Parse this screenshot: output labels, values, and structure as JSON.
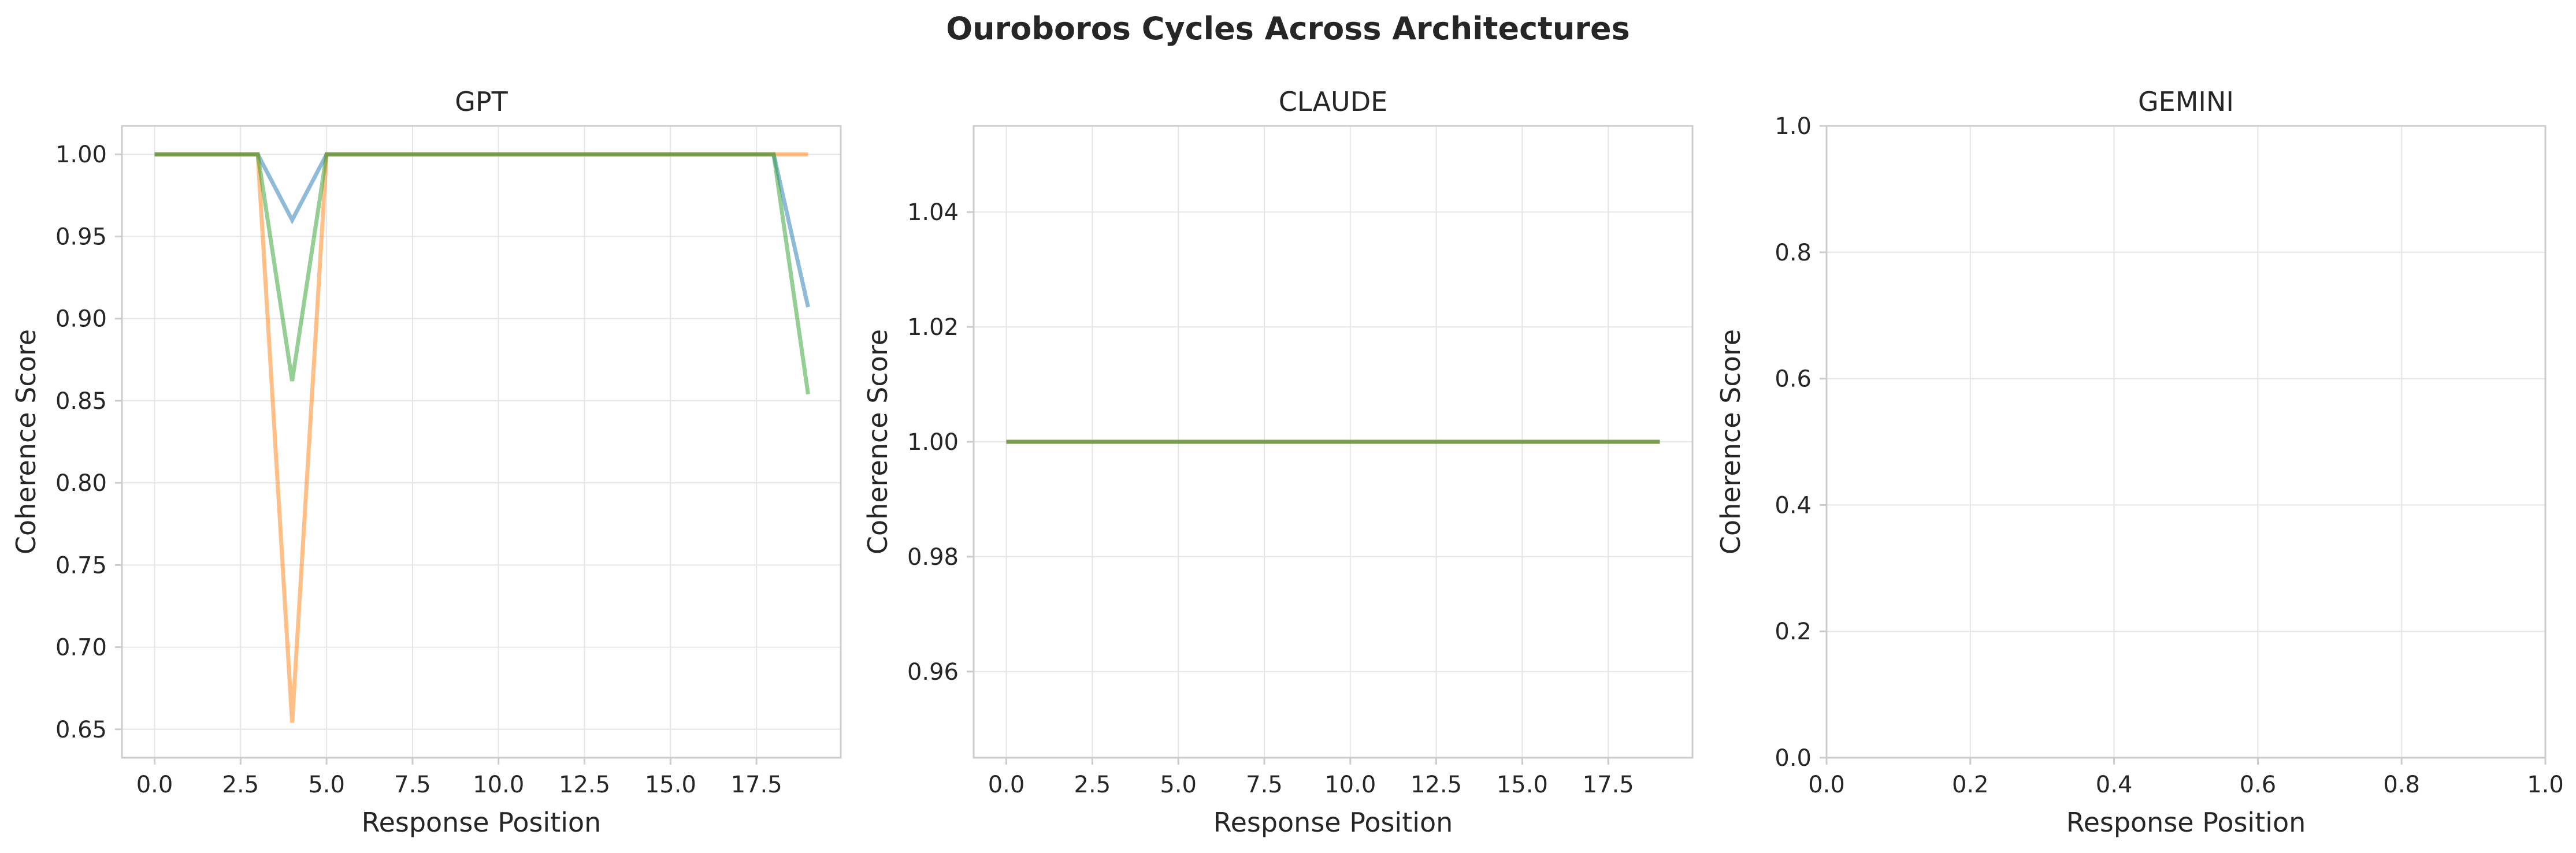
{
  "figure": {
    "title": "Ouroboros Cycles Across Architectures"
  },
  "chart_data": [
    {
      "type": "line",
      "title": "GPT",
      "xlabel": "Response Position",
      "ylabel": "Coherence Score",
      "xlim": [
        -0.95,
        19.95
      ],
      "ylim": [
        0.6327,
        1.0173
      ],
      "xticks": [
        0.0,
        2.5,
        5.0,
        7.5,
        10.0,
        12.5,
        15.0,
        17.5
      ],
      "xtick_labels": [
        "0.0",
        "2.5",
        "5.0",
        "7.5",
        "10.0",
        "12.5",
        "15.0",
        "17.5"
      ],
      "yticks": [
        0.65,
        0.7,
        0.75,
        0.8,
        0.85,
        0.9,
        0.95,
        1.0
      ],
      "ytick_labels": [
        "0.65",
        "0.70",
        "0.75",
        "0.80",
        "0.85",
        "0.90",
        "0.95",
        "1.00"
      ],
      "grid": true,
      "x": [
        0,
        1,
        2,
        3,
        4,
        5,
        6,
        7,
        8,
        9,
        10,
        11,
        12,
        13,
        14,
        15,
        16,
        17,
        18,
        19
      ],
      "series": [
        {
          "color": "#1f77b4",
          "values": [
            1.0,
            1.0,
            1.0,
            1.0,
            0.96,
            1.0,
            1.0,
            1.0,
            1.0,
            1.0,
            1.0,
            1.0,
            1.0,
            1.0,
            1.0,
            1.0,
            1.0,
            1.0,
            1.0,
            0.907
          ]
        },
        {
          "color": "#ff7f0e",
          "values": [
            1.0,
            1.0,
            1.0,
            1.0,
            0.654,
            1.0,
            1.0,
            1.0,
            1.0,
            1.0,
            1.0,
            1.0,
            1.0,
            1.0,
            1.0,
            1.0,
            1.0,
            1.0,
            1.0,
            1.0
          ]
        },
        {
          "color": "#2ca02c",
          "values": [
            1.0,
            1.0,
            1.0,
            1.0,
            0.862,
            1.0,
            1.0,
            1.0,
            1.0,
            1.0,
            1.0,
            1.0,
            1.0,
            1.0,
            1.0,
            1.0,
            1.0,
            1.0,
            1.0,
            0.854
          ]
        }
      ]
    },
    {
      "type": "line",
      "title": "CLAUDE",
      "xlabel": "Response Position",
      "ylabel": "Coherence Score",
      "xlim": [
        -0.95,
        19.95
      ],
      "ylim": [
        0.945,
        1.055
      ],
      "xticks": [
        0.0,
        2.5,
        5.0,
        7.5,
        10.0,
        12.5,
        15.0,
        17.5
      ],
      "xtick_labels": [
        "0.0",
        "2.5",
        "5.0",
        "7.5",
        "10.0",
        "12.5",
        "15.0",
        "17.5"
      ],
      "yticks": [
        0.96,
        0.98,
        1.0,
        1.02,
        1.04
      ],
      "ytick_labels": [
        "0.96",
        "0.98",
        "1.00",
        "1.02",
        "1.04"
      ],
      "grid": true,
      "x": [
        0,
        1,
        2,
        3,
        4,
        5,
        6,
        7,
        8,
        9,
        10,
        11,
        12,
        13,
        14,
        15,
        16,
        17,
        18,
        19
      ],
      "series": [
        {
          "color": "#1f77b4",
          "values": [
            1,
            1,
            1,
            1,
            1,
            1,
            1,
            1,
            1,
            1,
            1,
            1,
            1,
            1,
            1,
            1,
            1,
            1,
            1,
            1
          ]
        },
        {
          "color": "#ff7f0e",
          "values": [
            1,
            1,
            1,
            1,
            1,
            1,
            1,
            1,
            1,
            1,
            1,
            1,
            1,
            1,
            1,
            1,
            1,
            1,
            1,
            1
          ]
        },
        {
          "color": "#2ca02c",
          "values": [
            1,
            1,
            1,
            1,
            1,
            1,
            1,
            1,
            1,
            1,
            1,
            1,
            1,
            1,
            1,
            1,
            1,
            1,
            1,
            1
          ]
        }
      ]
    },
    {
      "type": "line",
      "title": "GEMINI",
      "xlabel": "Response Position",
      "ylabel": "Coherence Score",
      "xlim": [
        0.0,
        1.0
      ],
      "ylim": [
        0.0,
        1.0
      ],
      "xticks": [
        0.0,
        0.2,
        0.4,
        0.6,
        0.8,
        1.0
      ],
      "xtick_labels": [
        "0.0",
        "0.2",
        "0.4",
        "0.6",
        "0.8",
        "1.0"
      ],
      "yticks": [
        0.0,
        0.2,
        0.4,
        0.6,
        0.8,
        1.0
      ],
      "ytick_labels": [
        "0.0",
        "0.2",
        "0.4",
        "0.6",
        "0.8",
        "1.0"
      ],
      "grid": true,
      "x": [],
      "series": []
    }
  ]
}
